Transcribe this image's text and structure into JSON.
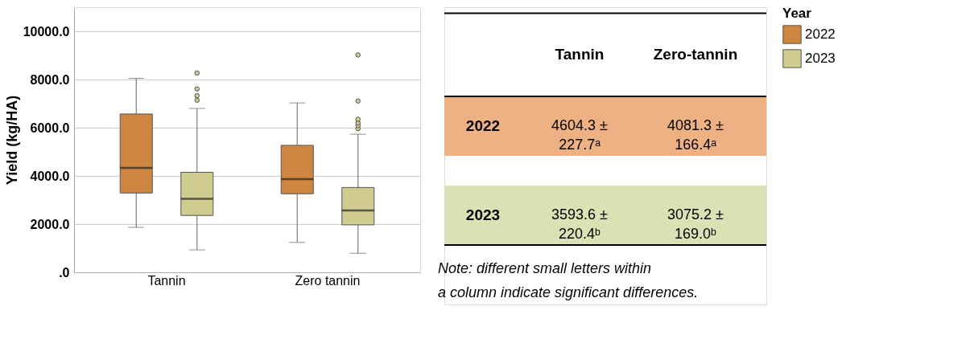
{
  "chart_data": [
    {
      "type": "box",
      "ylabel": "Yield (kg/HA)",
      "legend_title": "Year",
      "legend": "top right",
      "grid": "y",
      "categories": [
        "Tannin",
        "Zero tannin"
      ],
      "ylim": [
        0,
        11000
      ],
      "yticks": [
        {
          "value": 0,
          "label": ".0"
        },
        {
          "value": 2000,
          "label": "2000.0"
        },
        {
          "value": 4000,
          "label": "4000.0"
        },
        {
          "value": 6000,
          "label": "6000.0"
        },
        {
          "value": 8000,
          "label": "8000.0"
        },
        {
          "value": 10000,
          "label": "10000.0"
        }
      ],
      "series": [
        {
          "name": "2022",
          "color": "#cd853f",
          "boxes": [
            {
              "low": 1865,
              "q1": 3290,
              "median": 4330,
              "q3": 6570,
              "high": 8050
            },
            {
              "low": 1240,
              "q1": 3260,
              "median": 3870,
              "q3": 5270,
              "high": 7030
            }
          ]
        },
        {
          "name": "2023",
          "color": "#d0cb8f",
          "boxes": [
            {
              "low": 930,
              "q1": 2360,
              "median": 3050,
              "q3": 4150,
              "high": 6800,
              "outliers": [
                7140,
                7330,
                7610,
                8270
              ]
            },
            {
              "low": 790,
              "q1": 1970,
              "median": 2570,
              "q3": 3520,
              "high": 5730,
              "outliers": [
                5960,
                6090,
                6200,
                6350,
                7110,
                9020
              ]
            }
          ]
        }
      ]
    },
    {
      "type": "other",
      "categories": [
        "Tannin",
        "Zero-tannin"
      ],
      "y_categories": [
        "2022",
        "2023"
      ],
      "colors": [
        "#edb184",
        "#d9e2b4"
      ],
      "cell_labels": [
        [
          "4604.3 ± 227.7ᵃ",
          "4081.3 ± 166.4ᵃ"
        ],
        [
          "3593.6 ± 220.4ᵇ",
          "3075.2 ± 169.0ᵇ"
        ]
      ],
      "annotations": [
        "Note: different small letters within a column indicate significant differences."
      ]
    }
  ]
}
